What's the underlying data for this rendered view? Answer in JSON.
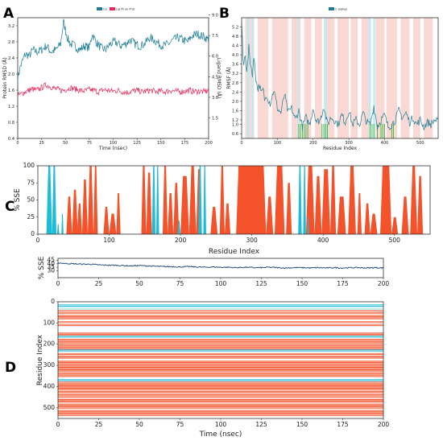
{
  "panel_letters": {
    "a": "A",
    "b": "B",
    "c": "C",
    "d": "D"
  },
  "colors": {
    "teal": "#1b7e96",
    "pink": "#e8285a",
    "orange": "#f4522a",
    "cyan": "#1fbcd8",
    "navy": "#163d78",
    "green": "#22b02a",
    "helix_bg": "#f8c8c0",
    "strand_bg": "#bfe9f2"
  },
  "chart_data": [
    {
      "id": "A",
      "type": "line",
      "legend": [
        "Cα",
        "Lig fit on Prot"
      ],
      "xlabel": "Time (nsec)",
      "ylabel": "Protein RMSD (Å)",
      "y2label": "Ligand RMSD (Å)",
      "xlim": [
        0,
        200
      ],
      "ylim": [
        0.4,
        3.4
      ],
      "y2lim": [
        0.0,
        8.8
      ],
      "xticks": [
        "0",
        "25",
        "50",
        "75",
        "100",
        "125",
        "150",
        "175",
        "200"
      ],
      "yticks": [
        "0.4",
        "0.8",
        "1.2",
        "1.6",
        "2.0",
        "2.4",
        "2.8",
        "3.2"
      ],
      "y2ticks": [
        "1.5",
        "3.0",
        "4.5",
        "6.0",
        "7.5",
        "9.0"
      ],
      "series": [
        {
          "name": "Cα",
          "axis": "left",
          "x": [
            0,
            3,
            8,
            12,
            16,
            20,
            25,
            30,
            35,
            40,
            45,
            48,
            52,
            55,
            60,
            65,
            70,
            75,
            78,
            82,
            87,
            92,
            97,
            102,
            108,
            113,
            118,
            123,
            128,
            133,
            138,
            143,
            148,
            153,
            158,
            163,
            168,
            173,
            178,
            183,
            188,
            193,
            197,
            200
          ],
          "y": [
            1.9,
            2.2,
            2.5,
            2.45,
            2.6,
            2.55,
            2.6,
            2.7,
            2.55,
            2.6,
            2.75,
            3.3,
            2.9,
            2.75,
            2.7,
            2.6,
            2.7,
            2.65,
            3.0,
            2.8,
            2.65,
            2.6,
            2.75,
            2.8,
            2.7,
            2.75,
            2.85,
            2.75,
            2.7,
            2.75,
            2.9,
            2.85,
            2.75,
            2.7,
            2.75,
            2.85,
            2.9,
            2.85,
            2.8,
            2.95,
            3.0,
            2.95,
            2.9,
            2.85
          ]
        },
        {
          "name": "Lig fit on Prot",
          "axis": "right",
          "x": [
            0,
            5,
            10,
            15,
            20,
            25,
            30,
            35,
            40,
            45,
            50,
            55,
            60,
            65,
            70,
            75,
            80,
            85,
            90,
            95,
            100,
            105,
            110,
            115,
            120,
            125,
            130,
            135,
            140,
            145,
            150,
            155,
            160,
            165,
            170,
            175,
            180,
            185,
            190,
            195,
            200
          ],
          "y": [
            3.1,
            3.3,
            3.45,
            3.6,
            3.5,
            3.7,
            3.9,
            3.75,
            3.6,
            3.5,
            3.55,
            3.7,
            3.6,
            3.5,
            3.45,
            3.55,
            3.5,
            3.4,
            3.55,
            3.5,
            3.45,
            3.5,
            3.4,
            3.35,
            3.45,
            3.5,
            3.4,
            3.45,
            3.5,
            3.4,
            3.45,
            3.4,
            3.5,
            3.45,
            3.4,
            3.45,
            3.5,
            3.4,
            3.45,
            3.4,
            3.5
          ]
        }
      ]
    },
    {
      "id": "B",
      "type": "line",
      "legend": [
        "C-alphas"
      ],
      "xlabel": "Residue Index",
      "ylabel": "RMSF (Å)",
      "xlim": [
        0,
        550
      ],
      "ylim": [
        0.4,
        5.6
      ],
      "xticks": [
        "0",
        "100",
        "200",
        "300",
        "400",
        "500"
      ],
      "yticks": [
        "0.6",
        "1.0",
        "1.2",
        "1.6",
        "2.0",
        "2.4",
        "2.8",
        "3.2",
        "3.6",
        "4.0",
        "4.4",
        "4.8",
        "5.2"
      ],
      "series": [
        {
          "name": "C-alphas",
          "x": [
            0,
            5,
            10,
            15,
            20,
            25,
            30,
            35,
            40,
            45,
            50,
            55,
            60,
            65,
            70,
            80,
            90,
            100,
            110,
            120,
            130,
            140,
            150,
            160,
            170,
            180,
            190,
            200,
            210,
            220,
            230,
            240,
            250,
            260,
            270,
            280,
            290,
            300,
            310,
            320,
            330,
            340,
            350,
            360,
            370,
            380,
            390,
            400,
            410,
            420,
            430,
            440,
            450,
            460,
            470,
            480,
            490,
            500,
            510,
            520,
            530,
            540,
            550
          ],
          "y": [
            5.4,
            3.4,
            4.1,
            3.2,
            4.3,
            3.6,
            3.2,
            3.9,
            3.0,
            2.5,
            2.7,
            2.3,
            2.5,
            2.0,
            2.3,
            1.9,
            2.5,
            1.7,
            1.5,
            2.3,
            1.5,
            1.7,
            1.2,
            1.6,
            0.9,
            1.3,
            1.0,
            1.7,
            1.1,
            1.2,
            1.8,
            1.0,
            1.3,
            1.2,
            1.0,
            1.4,
            1.1,
            1.6,
            1.0,
            1.2,
            1.0,
            1.5,
            1.1,
            1.0,
            1.8,
            0.9,
            1.2,
            1.4,
            0.9,
            1.0,
            1.2,
            1.6,
            1.3,
            1.5,
            1.1,
            1.3,
            1.0,
            1.2,
            0.9,
            1.1,
            1.0,
            1.2,
            1.1
          ]
        }
      ],
      "bg_helix_ranges": [
        [
          10,
          35
        ],
        [
          45,
          75
        ],
        [
          85,
          130
        ],
        [
          140,
          165
        ],
        [
          175,
          195
        ],
        [
          205,
          225
        ],
        [
          235,
          260
        ],
        [
          268,
          300
        ],
        [
          305,
          325
        ],
        [
          335,
          360
        ],
        [
          375,
          400
        ],
        [
          405,
          435
        ],
        [
          445,
          470
        ],
        [
          480,
          500
        ],
        [
          510,
          535
        ]
      ],
      "bg_strand_ranges": [
        [
          15,
          22
        ],
        [
          28,
          34
        ],
        [
          155,
          160
        ],
        [
          230,
          238
        ],
        [
          355,
          362
        ],
        [
          368,
          374
        ]
      ],
      "contact_residues": [
        160,
        165,
        170,
        175,
        180,
        185,
        225,
        230,
        235,
        240,
        360,
        365,
        370,
        380,
        390,
        395,
        400,
        420,
        425
      ]
    },
    {
      "id": "C",
      "type": "area",
      "xlabel": "Residue Index",
      "ylabel": "% SSE",
      "xlim": [
        0,
        550
      ],
      "ylim": [
        0,
        100
      ],
      "xticks": [
        "0",
        "100",
        "200",
        "300",
        "400",
        "500"
      ],
      "yticks": [
        "0",
        "25",
        "50",
        "75",
        "100"
      ],
      "helix": [
        [
          40,
          48,
          55
        ],
        [
          48,
          56,
          65
        ],
        [
          55,
          62,
          45
        ],
        [
          62,
          70,
          80
        ],
        [
          70,
          78,
          100
        ],
        [
          78,
          84,
          100
        ],
        [
          92,
          100,
          40
        ],
        [
          100,
          110,
          30
        ],
        [
          110,
          116,
          60
        ],
        [
          145,
          152,
          100
        ],
        [
          152,
          160,
          90
        ],
        [
          175,
          182,
          100
        ],
        [
          182,
          190,
          60
        ],
        [
          190,
          198,
          75
        ],
        [
          200,
          212,
          85
        ],
        [
          212,
          222,
          100
        ],
        [
          222,
          230,
          95
        ],
        [
          242,
          252,
          40
        ],
        [
          255,
          262,
          100
        ],
        [
          262,
          270,
          45
        ],
        [
          278,
          320,
          100
        ],
        [
          320,
          330,
          55
        ],
        [
          332,
          346,
          100
        ],
        [
          348,
          356,
          75
        ],
        [
          376,
          388,
          100
        ],
        [
          388,
          398,
          85
        ],
        [
          398,
          410,
          95
        ],
        [
          410,
          418,
          100
        ],
        [
          420,
          432,
          55
        ],
        [
          435,
          446,
          100
        ],
        [
          448,
          454,
          60
        ],
        [
          458,
          466,
          45
        ],
        [
          466,
          476,
          30
        ],
        [
          480,
          496,
          100
        ],
        [
          496,
          505,
          25
        ],
        [
          510,
          520,
          55
        ],
        [
          522,
          532,
          100
        ],
        [
          532,
          540,
          85
        ]
      ],
      "strand": [
        [
          12,
          20,
          100
        ],
        [
          20,
          26,
          100
        ],
        [
          27,
          30,
          15
        ],
        [
          33,
          36,
          30
        ],
        [
          160,
          165,
          100
        ],
        [
          166,
          170,
          100
        ],
        [
          225,
          230,
          100
        ],
        [
          232,
          236,
          100
        ],
        [
          365,
          370,
          100
        ],
        [
          372,
          376,
          100
        ],
        [
          378,
          380,
          25
        ],
        [
          196,
          200,
          20
        ]
      ]
    },
    {
      "id": "D-top",
      "type": "line",
      "ylabel": "% SSE",
      "xlim": [
        0,
        200
      ],
      "ylim": [
        20,
        48
      ],
      "yticks": [
        "30",
        "35",
        "40",
        "45"
      ],
      "xticks": [
        "0",
        "25",
        "50",
        "75",
        "100",
        "125",
        "150",
        "175",
        "200"
      ],
      "series": [
        {
          "name": "SSE",
          "x": [
            0,
            5,
            10,
            15,
            20,
            25,
            30,
            35,
            40,
            45,
            50,
            55,
            60,
            65,
            70,
            75,
            80,
            85,
            90,
            95,
            100,
            105,
            110,
            115,
            120,
            125,
            130,
            135,
            140,
            145,
            150,
            155,
            160,
            165,
            170,
            175,
            180,
            185,
            190,
            195,
            200
          ],
          "y": [
            41.5,
            40.5,
            40,
            39.5,
            39.5,
            38.5,
            38,
            38,
            37.5,
            37,
            37.5,
            37,
            36.5,
            36,
            36,
            35.5,
            36,
            35.5,
            35,
            35.5,
            35,
            35,
            34.5,
            35,
            34.5,
            34.5,
            35,
            34.5,
            34,
            34.5,
            34.5,
            34,
            34.5,
            34,
            34.5,
            34,
            34.5,
            34.5,
            34,
            34.5,
            34
          ]
        }
      ]
    },
    {
      "id": "D",
      "type": "heatmap",
      "xlabel": "Time (nsec)",
      "ylabel": "Residue Index",
      "xlim": [
        0,
        200
      ],
      "ylim": [
        0,
        550
      ],
      "xticks": [
        "0",
        "25",
        "50",
        "75",
        "100",
        "125",
        "150",
        "175",
        "200"
      ],
      "yticks": [
        "0",
        "100",
        "200",
        "300",
        "400",
        "500"
      ],
      "helix_bands": [
        [
          40,
          48
        ],
        [
          50,
          58
        ],
        [
          62,
          84
        ],
        [
          92,
          100
        ],
        [
          104,
          116
        ],
        [
          145,
          160
        ],
        [
          175,
          198
        ],
        [
          200,
          230
        ],
        [
          242,
          252
        ],
        [
          255,
          270
        ],
        [
          278,
          330
        ],
        [
          332,
          356
        ],
        [
          376,
          418
        ],
        [
          420,
          432
        ],
        [
          435,
          454
        ],
        [
          458,
          476
        ],
        [
          480,
          505
        ],
        [
          510,
          540
        ]
      ],
      "strand_bands": [
        [
          12,
          26
        ],
        [
          33,
          36
        ],
        [
          160,
          170
        ],
        [
          225,
          236
        ],
        [
          365,
          376
        ]
      ]
    }
  ]
}
